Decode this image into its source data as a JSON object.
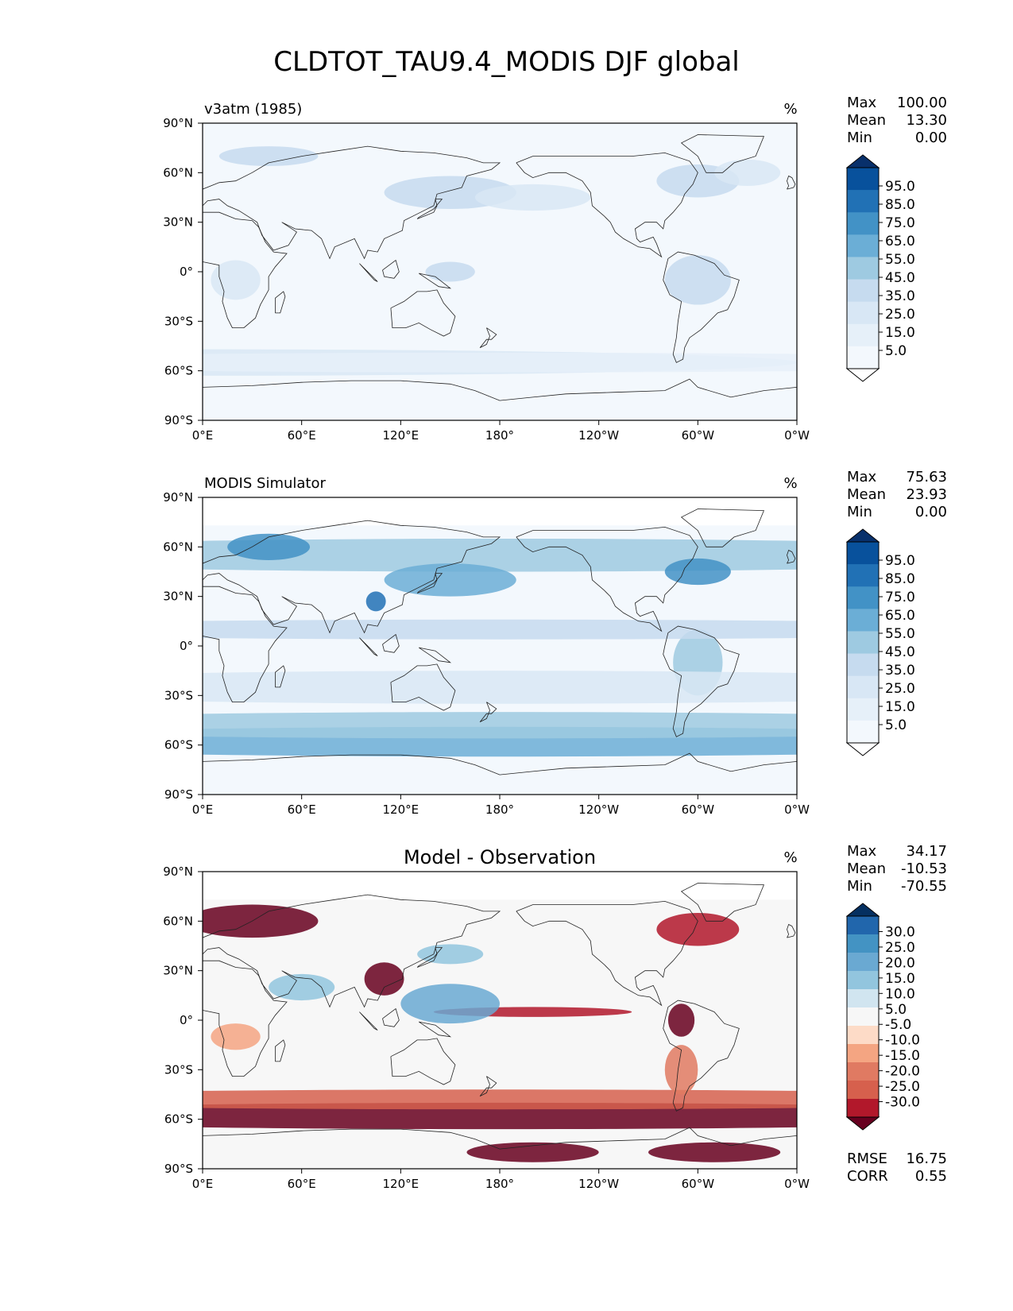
{
  "figure_title": "CLDTOT_TAU9.4_MODIS DJF global",
  "lat_ticks": [
    "90°N",
    "60°N",
    "30°N",
    "0°",
    "30°S",
    "60°S",
    "90°S"
  ],
  "lon_ticks": [
    "0°E",
    "60°E",
    "120°E",
    "180°",
    "120°W",
    "60°W",
    "0°W"
  ],
  "panels": [
    {
      "title_left": "v3atm (1985)",
      "title_center": "",
      "units": "%",
      "stats": [
        {
          "label": "Max",
          "value": "100.00"
        },
        {
          "label": "Mean",
          "value": "13.30"
        },
        {
          "label": "Min",
          "value": "0.00"
        }
      ],
      "colorbar_labels": [
        "95.0",
        "85.0",
        "75.0",
        "65.0",
        "55.0",
        "45.0",
        "35.0",
        "25.0",
        "15.0",
        "5.0"
      ],
      "colorbar_colors": [
        "#08306b",
        "#08519c",
        "#2171b5",
        "#4292c6",
        "#6baed6",
        "#9ecae1",
        "#c6dbef",
        "#d8e7f5",
        "#e6f0f9",
        "#f3f8fd",
        "#ffffff"
      ],
      "footer": []
    },
    {
      "title_left": "MODIS Simulator",
      "title_center": "",
      "units": "%",
      "stats": [
        {
          "label": "Max",
          "value": "75.63"
        },
        {
          "label": "Mean",
          "value": "23.93"
        },
        {
          "label": "Min",
          "value": "0.00"
        }
      ],
      "colorbar_labels": [
        "95.0",
        "85.0",
        "75.0",
        "65.0",
        "55.0",
        "45.0",
        "35.0",
        "25.0",
        "15.0",
        "5.0"
      ],
      "colorbar_colors": [
        "#08306b",
        "#08519c",
        "#2171b5",
        "#4292c6",
        "#6baed6",
        "#9ecae1",
        "#c6dbef",
        "#d8e7f5",
        "#e6f0f9",
        "#f3f8fd",
        "#ffffff"
      ],
      "footer": []
    },
    {
      "title_left": "",
      "title_center": "Model - Observation",
      "units": "%",
      "stats": [
        {
          "label": "Max",
          "value": "34.17"
        },
        {
          "label": "Mean",
          "value": "-10.53"
        },
        {
          "label": "Min",
          "value": "-70.55"
        }
      ],
      "colorbar_labels": [
        "30.0",
        "25.0",
        "20.0",
        "15.0",
        "10.0",
        "5.0",
        "-5.0",
        "-10.0",
        "-15.0",
        "-20.0",
        "-25.0",
        "-30.0"
      ],
      "colorbar_colors": [
        "#053061",
        "#2166ac",
        "#4393c3",
        "#6aa9d2",
        "#92c5de",
        "#d1e5f0",
        "#f7f7f7",
        "#fddbc7",
        "#f4a582",
        "#e07a62",
        "#d6604d",
        "#b2182b",
        "#67001f"
      ],
      "footer": [
        {
          "label": "RMSE",
          "value": "16.75"
        },
        {
          "label": "CORR",
          "value": "0.55"
        }
      ]
    }
  ]
}
